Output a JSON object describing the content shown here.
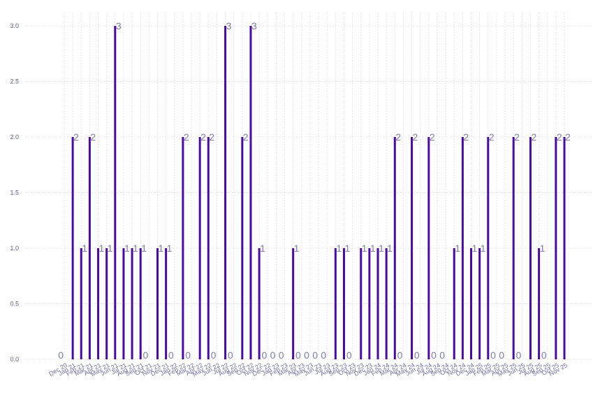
{
  "chart_data": {
    "type": "bar",
    "ylim": [
      0,
      3.15
    ],
    "yticks": [
      0.0,
      0.5,
      1.0,
      1.5,
      2.0,
      2.5,
      3.0
    ],
    "ytick_labels": [
      "0.0",
      "0.5",
      "1.0",
      "1.5",
      "2.0",
      "2.5",
      "3.0"
    ],
    "grid": true,
    "bar_color": "#4b0aa6",
    "label_color": "#7b7ba6",
    "tick_color": "#6e6ea8",
    "categories": [
      "Dec 20",
      "Jan 21",
      "Feb 21",
      "Mar 21",
      "Apr 21",
      "May 21",
      "Jun 21",
      "Jul 21",
      "Aug 21",
      "Sep 21",
      "Oct 21",
      "Nov 21",
      "Dec 21",
      "Jan 22",
      "Feb 22",
      "Mar 22",
      "Apr 22",
      "May 22",
      "Jun 22",
      "Jul 22",
      "Aug 22",
      "Sep 22",
      "Oct 22",
      "Nov 22",
      "Dec 22",
      "Jan 23",
      "Feb 23",
      "Mar 23",
      "Apr 23",
      "May 23",
      "Jun 23",
      "Jul 23",
      "Aug 23",
      "Sep 23",
      "Oct 23",
      "Nov 23",
      "Dec 23",
      "Jan 24",
      "Feb 24",
      "Mar 24",
      "Apr 24",
      "May 24",
      "Jun 24",
      "Jul 24",
      "Aug 24",
      "Sep 24",
      "Oct 24",
      "Nov 24",
      "Dec 24",
      "Jan 25",
      "Feb 25",
      "Mar 25",
      "Apr 25",
      "May 25",
      "Jun 25",
      "Jul 25",
      "Aug 25",
      "Sep 25",
      "Oct 25",
      "Nov 25"
    ],
    "values": [
      0,
      2,
      1,
      2,
      1,
      1,
      3,
      1,
      1,
      1,
      0,
      1,
      1,
      0,
      2,
      0,
      2,
      2,
      0,
      3,
      0,
      2,
      3,
      1,
      0,
      0,
      0,
      1,
      0,
      0,
      0,
      0,
      1,
      1,
      0,
      1,
      1,
      1,
      1,
      2,
      0,
      2,
      0,
      2,
      0,
      0,
      1,
      2,
      1,
      1,
      2,
      0,
      0,
      2,
      0,
      2,
      1,
      0,
      2,
      2
    ],
    "value_labels": [
      "0",
      "2",
      "1",
      "2",
      "1",
      "1",
      "3",
      "1",
      "1",
      "1",
      "0",
      "1",
      "1",
      "0",
      "2",
      "0",
      "2",
      "2",
      "0",
      "3",
      "0",
      "2",
      "3",
      "1",
      "0",
      "0",
      "0",
      "1",
      "0",
      "0",
      "0",
      "0",
      "1",
      "1",
      "0",
      "1",
      "1",
      "1",
      "1",
      "2",
      "0",
      "2",
      "0",
      "2",
      "0",
      "0",
      "1",
      "2",
      "1",
      "1",
      "2",
      "0",
      "0",
      "2",
      "0",
      "2",
      "1",
      "0",
      "2",
      "2"
    ]
  }
}
